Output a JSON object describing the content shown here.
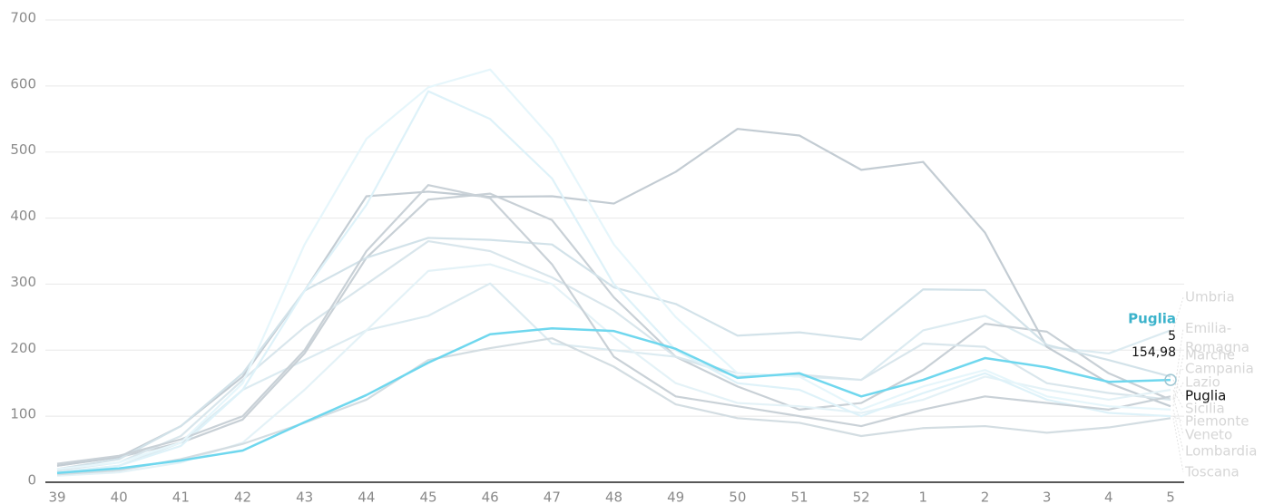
{
  "chart_data": {
    "type": "line",
    "categories": [
      "39",
      "40",
      "41",
      "42",
      "43",
      "44",
      "45",
      "46",
      "47",
      "48",
      "49",
      "50",
      "51",
      "52",
      "1",
      "2",
      "3",
      "4",
      "5"
    ],
    "ylim": [
      0,
      700
    ],
    "yticks": [
      0,
      100,
      200,
      300,
      400,
      500,
      600,
      700
    ],
    "grid": true,
    "highlight": "Puglia",
    "series": [
      {
        "name": "Umbria",
        "color": "#dcebf1",
        "values": [
          15,
          25,
          60,
          140,
          185,
          230,
          252,
          301,
          210,
          200,
          190,
          165,
          160,
          155,
          230,
          252,
          205,
          195,
          230
        ]
      },
      {
        "name": "Emilia-Romagna",
        "color": "#c8d0d6",
        "values": [
          25,
          38,
          60,
          95,
          195,
          340,
          428,
          437,
          397,
          280,
          190,
          145,
          110,
          120,
          170,
          240,
          228,
          165,
          125
        ]
      },
      {
        "name": "Marche",
        "color": "#c3ccd3",
        "values": [
          25,
          38,
          85,
          160,
          290,
          433,
          440,
          432,
          433,
          422,
          470,
          535,
          525,
          473,
          485,
          378,
          205,
          150,
          115
        ]
      },
      {
        "name": "Campania",
        "color": "#d2e2e9",
        "values": [
          20,
          35,
          85,
          165,
          290,
          340,
          370,
          367,
          360,
          295,
          270,
          222,
          227,
          216,
          292,
          291,
          208,
          185,
          160
        ]
      },
      {
        "name": "Lazio",
        "color": "#d9e6ec",
        "values": [
          18,
          30,
          70,
          155,
          235,
          300,
          365,
          350,
          310,
          260,
          190,
          160,
          163,
          155,
          210,
          205,
          150,
          135,
          125
        ]
      },
      {
        "name": "Puglia",
        "color": "#6fd7ee",
        "values": [
          14,
          21,
          33,
          48,
          91,
          132,
          181,
          224,
          233,
          229,
          202,
          158,
          165,
          130,
          155,
          188,
          174,
          152,
          154.98
        ]
      },
      {
        "name": "Sicilia",
        "color": "#e4f2f7",
        "values": [
          10,
          15,
          30,
          60,
          140,
          230,
          320,
          330,
          300,
          220,
          150,
          120,
          115,
          105,
          125,
          160,
          140,
          125,
          140
        ]
      },
      {
        "name": "Piemonte",
        "color": "#def2f9",
        "values": [
          15,
          25,
          55,
          140,
          290,
          420,
          592,
          550,
          460,
          300,
          200,
          150,
          140,
          100,
          135,
          165,
          125,
          105,
          100
        ]
      },
      {
        "name": "Veneto",
        "color": "#c9d1d7",
        "values": [
          28,
          40,
          65,
          100,
          200,
          350,
          450,
          430,
          330,
          190,
          130,
          115,
          100,
          85,
          110,
          130,
          120,
          110,
          130
        ]
      },
      {
        "name": "Lombardia",
        "color": "#e6f6fb",
        "values": [
          20,
          30,
          60,
          150,
          360,
          520,
          598,
          625,
          520,
          360,
          250,
          165,
          160,
          110,
          145,
          170,
          130,
          115,
          110
        ]
      },
      {
        "name": "Toscana",
        "color": "#d3dde2",
        "values": [
          12,
          18,
          35,
          58,
          90,
          125,
          185,
          203,
          218,
          175,
          118,
          97,
          90,
          70,
          82,
          85,
          75,
          83,
          97
        ]
      }
    ],
    "tooltip": {
      "series": "Puglia",
      "category": "5",
      "value": 154.98,
      "value_label": "154,98"
    }
  }
}
